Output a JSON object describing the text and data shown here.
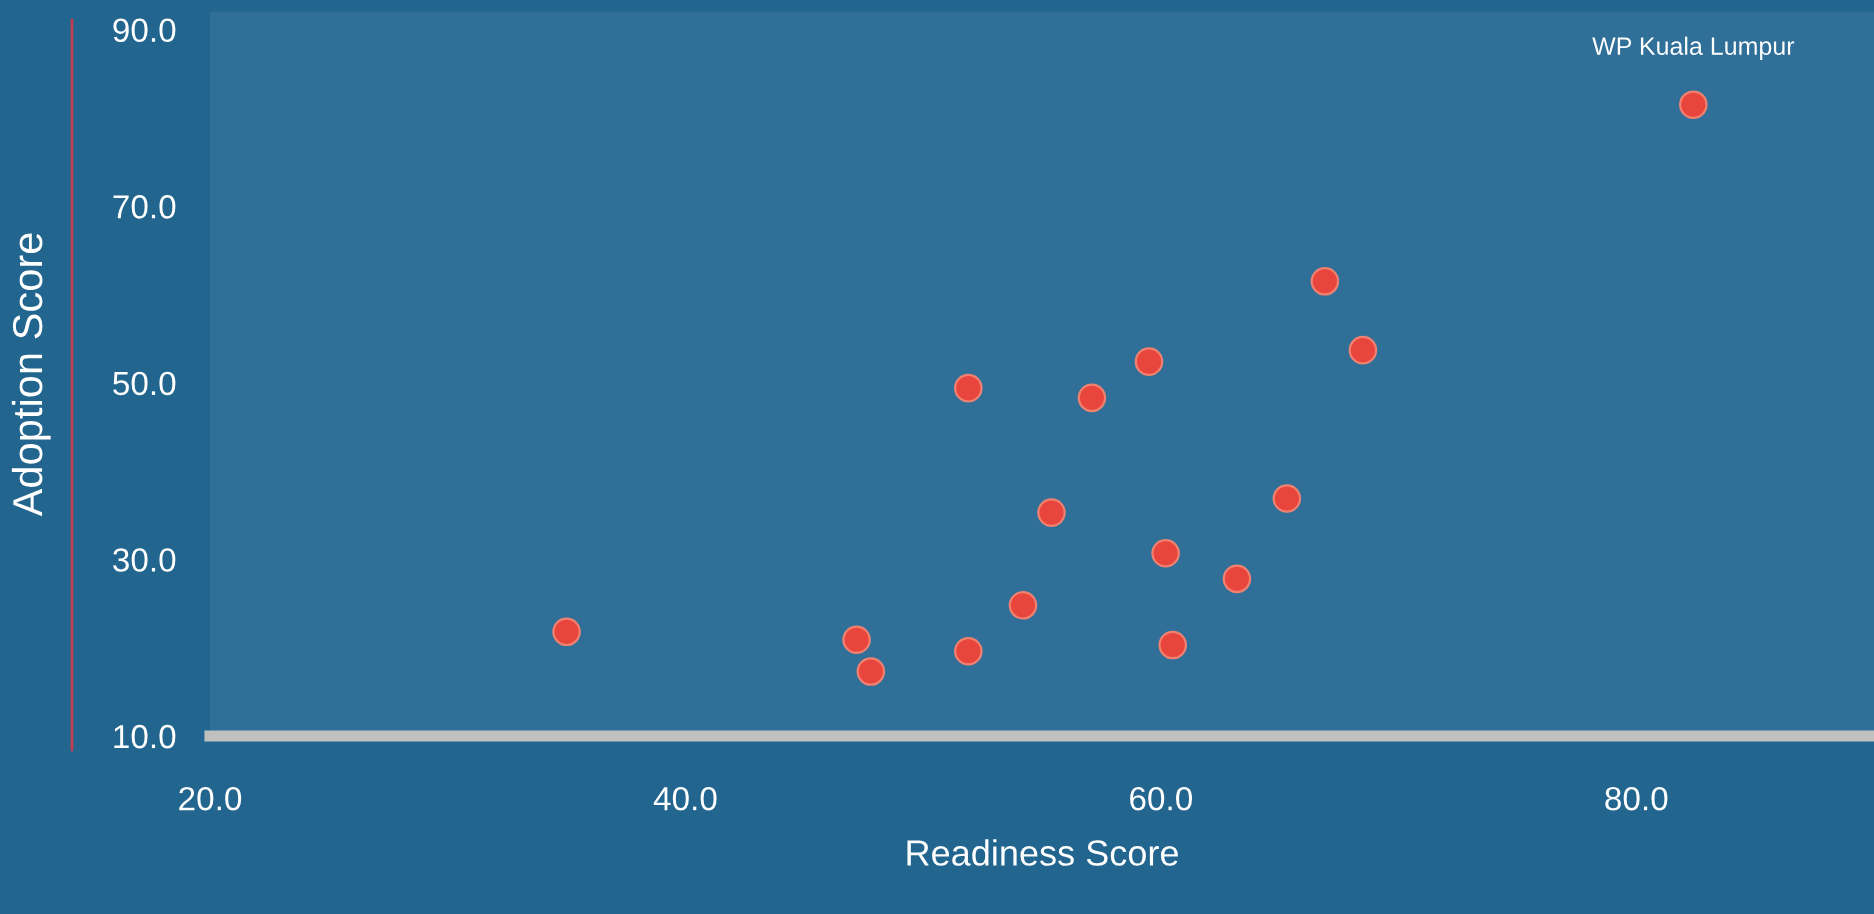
{
  "chart_data": {
    "type": "scatter",
    "xlabel": "Readiness Score",
    "ylabel": "Adoption Score",
    "x": [
      35.0,
      47.2,
      47.8,
      51.9,
      51.9,
      54.2,
      55.4,
      57.1,
      59.5,
      60.2,
      60.5,
      63.2,
      65.3,
      66.9,
      68.5,
      82.4
    ],
    "values": [
      21.8,
      20.9,
      17.3,
      19.6,
      49.4,
      24.8,
      35.3,
      48.3,
      52.4,
      30.7,
      20.3,
      27.8,
      36.9,
      61.5,
      53.7,
      81.5
    ],
    "color": "#e8453c",
    "marker": "circle",
    "xlim": [
      20,
      90
    ],
    "ylim": [
      10,
      92
    ],
    "xticks": [
      {
        "value": 20,
        "label": "20.0"
      },
      {
        "value": 40,
        "label": "40.0"
      },
      {
        "value": 60,
        "label": "60.0"
      },
      {
        "value": 80,
        "label": "80.0"
      }
    ],
    "yticks": [
      {
        "value": 10,
        "label": "10.0"
      },
      {
        "value": 30,
        "label": "30.0"
      },
      {
        "value": 50,
        "label": "50.0"
      },
      {
        "value": 70,
        "label": "70.0"
      },
      {
        "value": 90,
        "label": "90.0"
      }
    ],
    "annotations": [
      {
        "text": "WP Kuala Lumpur",
        "x": 82.4,
        "y": 81.5
      }
    ],
    "grid": false
  }
}
